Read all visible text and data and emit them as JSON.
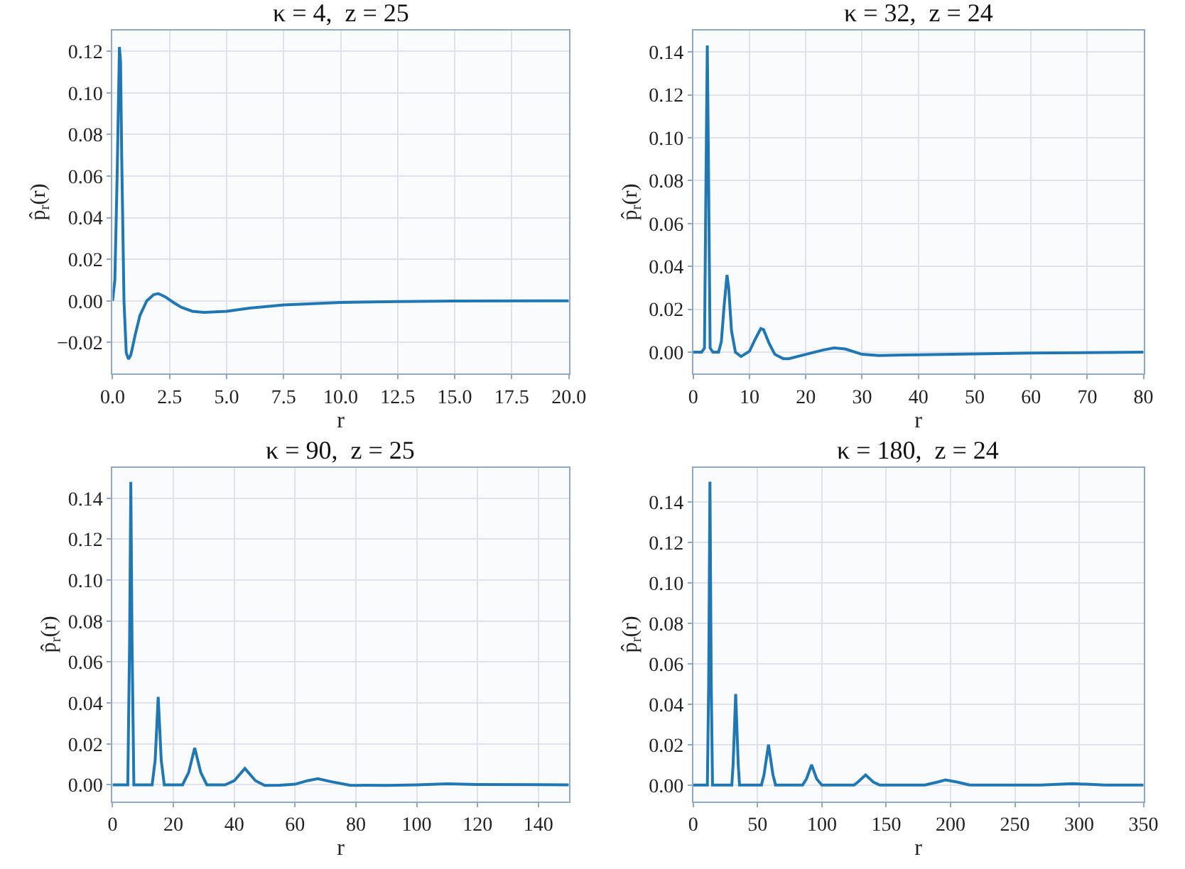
{
  "chart_data": [
    {
      "type": "line",
      "title": "κ = 4,  z = 25",
      "xlabel": "r",
      "ylabel": "p̂$_{r}$(r)",
      "grid": true,
      "x": [
        0,
        0.1,
        0.2,
        0.3,
        0.35,
        0.4,
        0.5,
        0.6,
        0.7,
        0.8,
        1.0,
        1.2,
        1.5,
        1.8,
        2.0,
        2.3,
        2.7,
        3.0,
        3.5,
        4.0,
        5,
        6,
        7.5,
        10,
        12.5,
        15,
        20
      ],
      "series": [
        {
          "color": "#1f77b4",
          "values": [
            0,
            0.01,
            0.06,
            0.122,
            0.115,
            0.07,
            0.0,
            -0.025,
            -0.028,
            -0.026,
            -0.016,
            -0.007,
            0.0,
            0.003,
            0.0035,
            0.002,
            -0.001,
            -0.003,
            -0.005,
            -0.0055,
            -0.005,
            -0.0035,
            -0.002,
            -0.0008,
            -0.0003,
            -0.0001,
            0
          ]
        }
      ],
      "xlim": [
        0,
        20
      ],
      "ylim": [
        -0.035,
        0.13
      ],
      "xticks": [
        {
          "value": 0,
          "label": "0.0"
        },
        {
          "value": 2.5,
          "label": "2.5"
        },
        {
          "value": 5,
          "label": "5.0"
        },
        {
          "value": 7.5,
          "label": "7.5"
        },
        {
          "value": 10,
          "label": "10.0"
        },
        {
          "value": 12.5,
          "label": "12.5"
        },
        {
          "value": 15,
          "label": "15.0"
        },
        {
          "value": 17.5,
          "label": "17.5"
        },
        {
          "value": 20,
          "label": "20.0"
        }
      ],
      "yticks": [
        {
          "value": -0.02,
          "label": "−0.02"
        },
        {
          "value": 0,
          "label": "0.00"
        },
        {
          "value": 0.02,
          "label": "0.02"
        },
        {
          "value": 0.04,
          "label": "0.04"
        },
        {
          "value": 0.06,
          "label": "0.06"
        },
        {
          "value": 0.08,
          "label": "0.08"
        },
        {
          "value": 0.1,
          "label": "0.10"
        },
        {
          "value": 0.12,
          "label": "0.12"
        }
      ]
    },
    {
      "type": "line",
      "title": "κ = 32,  z = 24",
      "xlabel": "r",
      "ylabel": "p̂$_{r}$(r)",
      "grid": true,
      "x": [
        0,
        1.5,
        2.0,
        2.3,
        2.5,
        2.7,
        3.0,
        3.5,
        4.5,
        5.0,
        5.5,
        6.0,
        6.3,
        6.8,
        7.5,
        8.5,
        10,
        11,
        12,
        12.5,
        13.5,
        14.5,
        16,
        17,
        20,
        23,
        25,
        27,
        30,
        33,
        40,
        50,
        60,
        80
      ],
      "series": [
        {
          "color": "#1f77b4",
          "values": [
            0,
            0,
            0.002,
            0.09,
            0.143,
            0.09,
            0.002,
            0,
            0,
            0.005,
            0.022,
            0.036,
            0.03,
            0.01,
            0,
            -0.002,
            0.0005,
            0.006,
            0.011,
            0.0105,
            0.004,
            -0.001,
            -0.003,
            -0.003,
            -0.001,
            0.001,
            0.002,
            0.0015,
            -0.001,
            -0.0015,
            -0.0012,
            -0.0008,
            -0.0004,
            0
          ]
        }
      ],
      "xlim": [
        0,
        80
      ],
      "ylim": [
        -0.01,
        0.15
      ],
      "xticks": [
        0,
        10,
        20,
        30,
        40,
        50,
        60,
        70,
        80
      ],
      "yticks": [
        {
          "value": 0,
          "label": "0.00"
        },
        {
          "value": 0.02,
          "label": "0.02"
        },
        {
          "value": 0.04,
          "label": "0.04"
        },
        {
          "value": 0.06,
          "label": "0.06"
        },
        {
          "value": 0.08,
          "label": "0.08"
        },
        {
          "value": 0.1,
          "label": "0.10"
        },
        {
          "value": 0.12,
          "label": "0.12"
        },
        {
          "value": 0.14,
          "label": "0.14"
        }
      ]
    },
    {
      "type": "line",
      "title": "κ = 90,  z = 25",
      "xlabel": "r",
      "ylabel": "p̂$_{r}$(r)",
      "grid": true,
      "x": [
        0,
        5,
        5.6,
        6,
        6.4,
        7,
        13,
        14,
        15,
        16,
        17,
        23,
        25,
        27,
        29,
        31,
        37,
        40,
        43.5,
        47,
        50,
        55,
        60,
        64,
        67.5,
        72,
        78,
        90,
        100,
        110,
        120,
        150
      ],
      "series": [
        {
          "color": "#1f77b4",
          "values": [
            0,
            0,
            0.07,
            0.148,
            0.07,
            0,
            0,
            0.012,
            0.043,
            0.012,
            0,
            0,
            0.006,
            0.018,
            0.006,
            0,
            0,
            0.002,
            0.008,
            0.002,
            -0.0003,
            -0.0002,
            0.0003,
            0.002,
            0.003,
            0.0015,
            -0.0002,
            -0.0003,
            0,
            0.0005,
            0.0002,
            0
          ]
        }
      ],
      "xlim": [
        0,
        150
      ],
      "ylim": [
        -0.008,
        0.155
      ],
      "xticks": [
        0,
        20,
        40,
        60,
        80,
        100,
        120,
        140
      ],
      "yticks": [
        {
          "value": 0,
          "label": "0.00"
        },
        {
          "value": 0.02,
          "label": "0.02"
        },
        {
          "value": 0.04,
          "label": "0.04"
        },
        {
          "value": 0.06,
          "label": "0.06"
        },
        {
          "value": 0.08,
          "label": "0.08"
        },
        {
          "value": 0.1,
          "label": "0.10"
        },
        {
          "value": 0.12,
          "label": "0.12"
        },
        {
          "value": 0.14,
          "label": "0.14"
        }
      ]
    },
    {
      "type": "line",
      "title": "κ = 180,  z = 24",
      "xlabel": "r",
      "ylabel": "p̂$_{r}$(r)",
      "grid": true,
      "x": [
        0,
        11,
        12,
        13,
        14,
        15,
        30,
        31,
        33,
        35,
        36,
        53,
        55,
        58.5,
        62,
        64,
        85,
        88,
        92,
        96,
        100,
        125,
        128,
        134,
        140,
        145,
        180,
        190,
        196,
        205,
        215,
        270,
        295,
        320,
        350
      ],
      "series": [
        {
          "color": "#1f77b4",
          "values": [
            0,
            0,
            0.05,
            0.15,
            0.05,
            0,
            0,
            0.01,
            0.045,
            0.01,
            0,
            0,
            0.005,
            0.02,
            0.005,
            0,
            0,
            0.003,
            0.01,
            0.003,
            0,
            0,
            0.0015,
            0.005,
            0.0015,
            0,
            0,
            0.0015,
            0.0025,
            0.0015,
            0,
            0,
            0.0007,
            0,
            0
          ]
        }
      ],
      "xlim": [
        0,
        350
      ],
      "ylim": [
        -0.008,
        0.157
      ],
      "xticks": [
        0,
        50,
        100,
        150,
        200,
        250,
        300,
        350
      ],
      "yticks": [
        {
          "value": 0,
          "label": "0.00"
        },
        {
          "value": 0.02,
          "label": "0.02"
        },
        {
          "value": 0.04,
          "label": "0.04"
        },
        {
          "value": 0.06,
          "label": "0.06"
        },
        {
          "value": 0.08,
          "label": "0.08"
        },
        {
          "value": 0.1,
          "label": "0.10"
        },
        {
          "value": 0.12,
          "label": "0.12"
        },
        {
          "value": 0.14,
          "label": "0.14"
        }
      ]
    }
  ]
}
